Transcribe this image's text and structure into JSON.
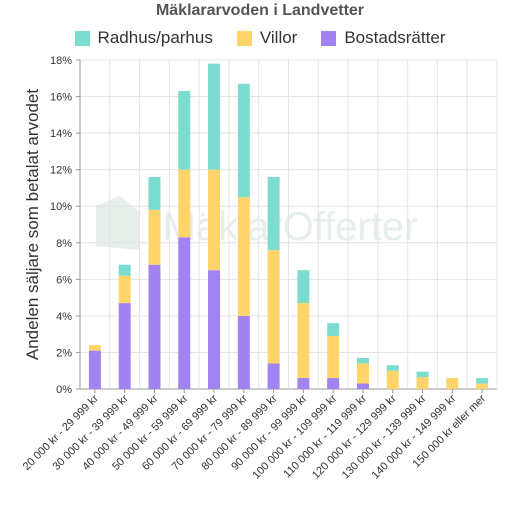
{
  "chart_data": {
    "type": "bar",
    "stacked": true,
    "title": "Mäklararvoden i Landvetter",
    "ylabel": "Andelen säljare som betalat arvodet",
    "xlabel": "",
    "ylim": [
      0,
      18
    ],
    "yticks": [
      "0%",
      "2%",
      "4%",
      "6%",
      "8%",
      "10%",
      "12%",
      "14%",
      "16%",
      "18%"
    ],
    "grid": true,
    "legend_position": "top-center",
    "watermark": "MäklarOfferter",
    "categories": [
      "20 000 kr - 29 999 kr",
      "30 000 kr - 39 999 kr",
      "40 000 kr - 49 999 kr",
      "50 000 kr - 59 999 kr",
      "60 000 kr - 69 999 kr",
      "70 000 kr - 79 999 kr",
      "80 000 kr - 89 999 kr",
      "90 000 kr - 99 999 kr",
      "100 000 kr - 109 999 kr",
      "110 000 kr - 119 999 kr",
      "120 000 kr - 129 999 kr",
      "130 000 kr - 139 999 kr",
      "140 000 kr - 149 999 kr",
      "150 000 kr eller mer"
    ],
    "series": [
      {
        "name": "Bostadsrätter",
        "color": "#a184f2",
        "values": [
          2.1,
          4.7,
          6.8,
          8.3,
          6.5,
          4.0,
          1.4,
          0.6,
          0.6,
          0.3,
          0,
          0,
          0,
          0
        ]
      },
      {
        "name": "Villor",
        "color": "#ffd56b",
        "values": [
          0.3,
          1.5,
          3.0,
          3.7,
          5.5,
          6.5,
          6.2,
          4.1,
          2.3,
          1.1,
          1.0,
          0.65,
          0.6,
          0.3
        ]
      },
      {
        "name": "Radhus/parhus",
        "color": "#7ddcd0",
        "values": [
          0,
          0.6,
          1.8,
          4.3,
          5.8,
          6.2,
          4.0,
          1.8,
          0.7,
          0.3,
          0.3,
          0.3,
          0,
          0.3
        ]
      }
    ],
    "legend_order": [
      "Radhus/parhus",
      "Villor",
      "Bostadsrätter"
    ]
  }
}
